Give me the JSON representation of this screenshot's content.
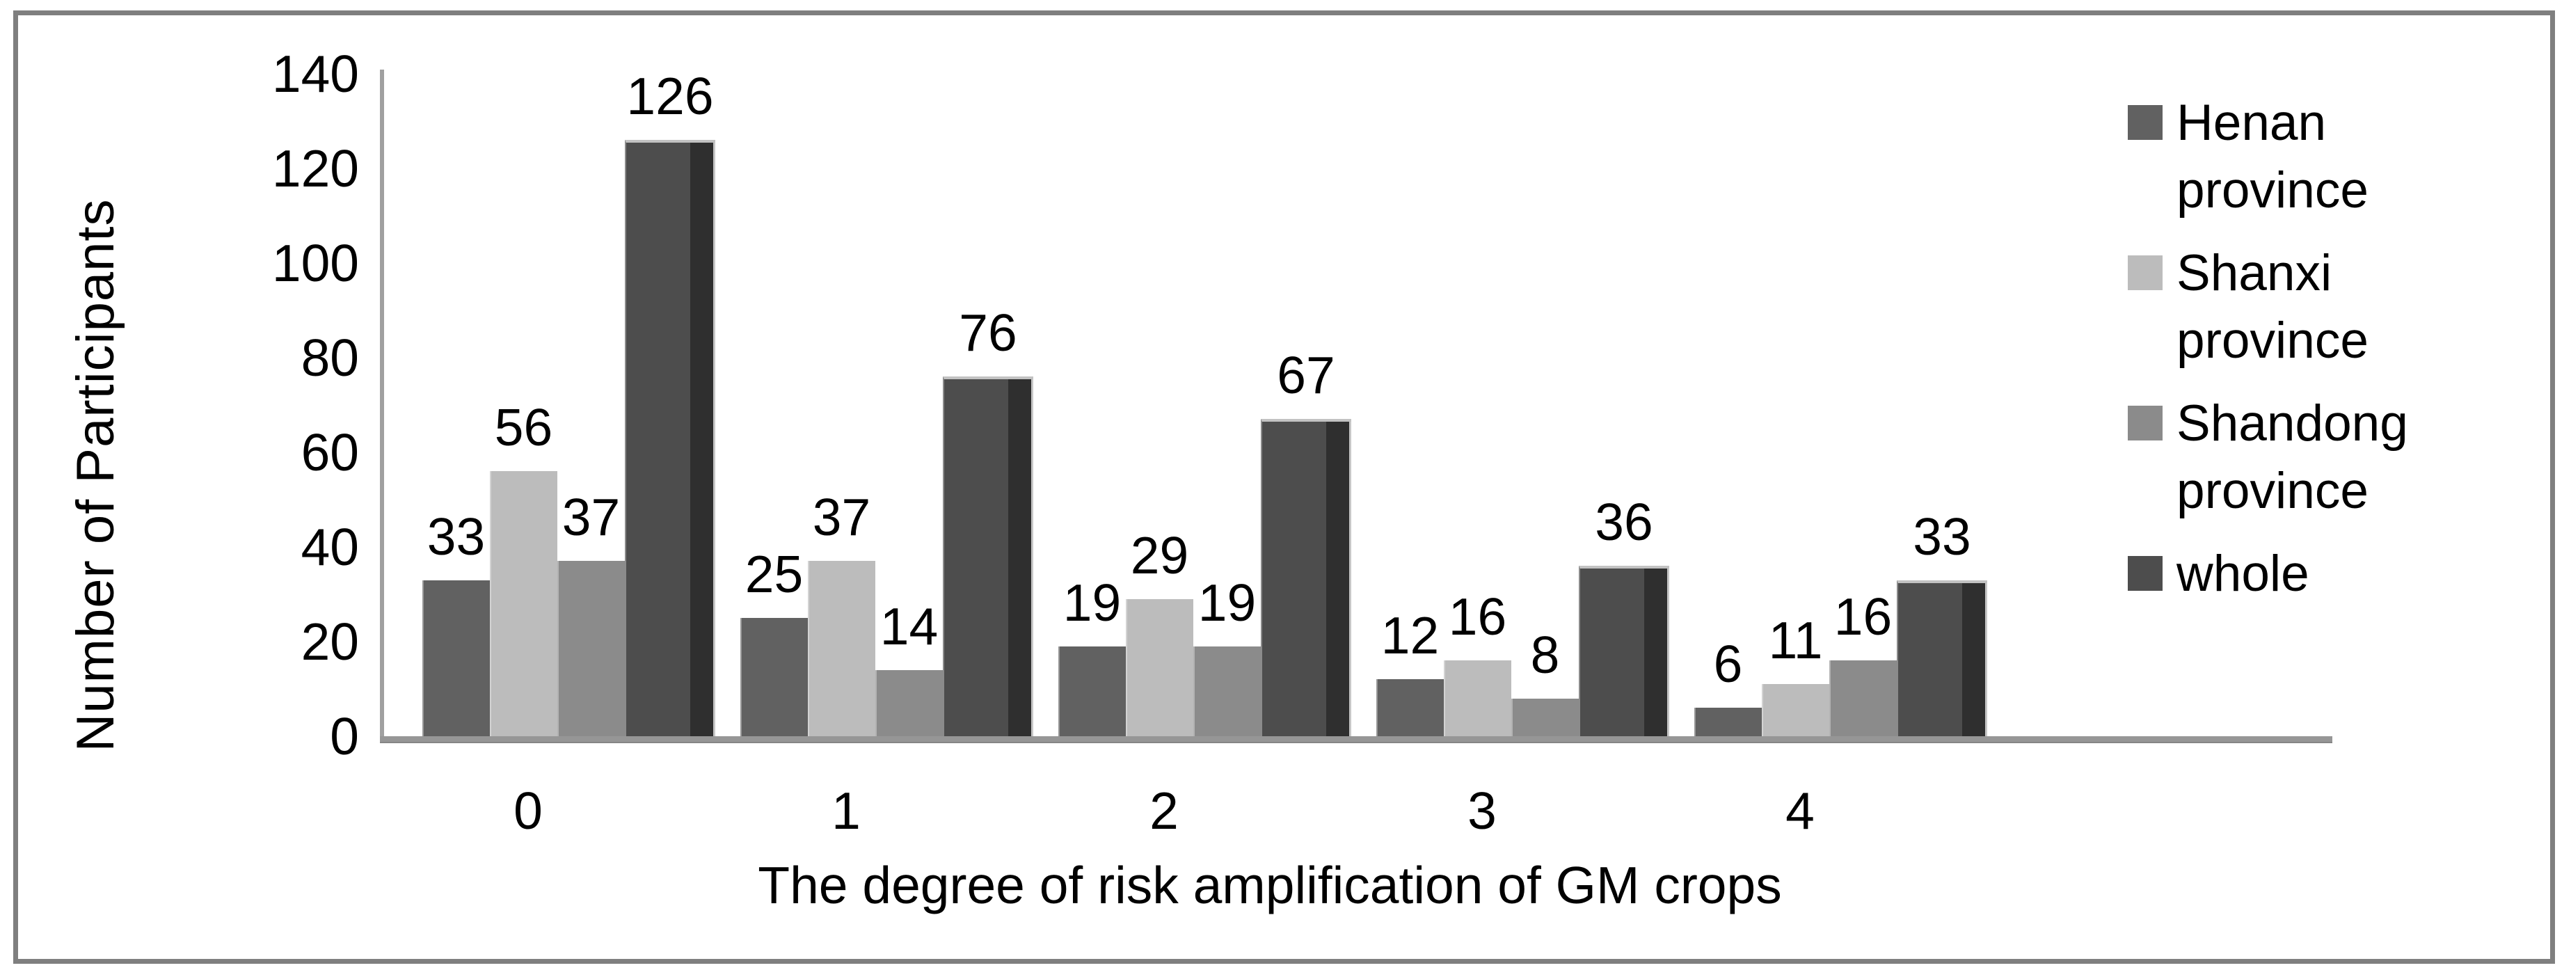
{
  "chart_data": {
    "type": "bar",
    "title": "",
    "categories": [
      "0",
      "1",
      "2",
      "3",
      "4"
    ],
    "series": [
      {
        "name": "Henan province",
        "values": [
          33,
          25,
          19,
          12,
          6
        ],
        "color": "#616161"
      },
      {
        "name": "Shanxi province",
        "values": [
          56,
          37,
          29,
          16,
          11
        ],
        "color": "#bcbcbc"
      },
      {
        "name": "Shandong province",
        "values": [
          37,
          14,
          19,
          8,
          16
        ],
        "color": "#8b8b8b"
      },
      {
        "name": "whole",
        "values": [
          126,
          76,
          67,
          36,
          33
        ],
        "color": "#4d4d4d",
        "side_color": "#2f2f2f"
      }
    ],
    "xlabel": "The degree of risk amplification of GM crops",
    "ylabel": "Number  of  Participants",
    "ylim": [
      0,
      140
    ],
    "yticks": [
      0,
      20,
      40,
      60,
      80,
      100,
      120,
      140
    ],
    "grid": false,
    "data_labels": true,
    "legend_position": "right"
  },
  "legend": {
    "items": [
      {
        "label": "Henan province",
        "lines": [
          "Henan",
          "province"
        ],
        "color": "#616161"
      },
      {
        "label": "Shanxi province",
        "lines": [
          "Shanxi",
          "province"
        ],
        "color": "#bcbcbc"
      },
      {
        "label": "Shandong province",
        "lines": [
          "Shandong",
          "province"
        ],
        "color": "#8b8b8b"
      },
      {
        "label": "whole",
        "lines": [
          "whole"
        ],
        "color": "#4d4d4d"
      }
    ]
  },
  "frame": {
    "border_color": "#7f7f7f",
    "axis_color": "#969696"
  }
}
